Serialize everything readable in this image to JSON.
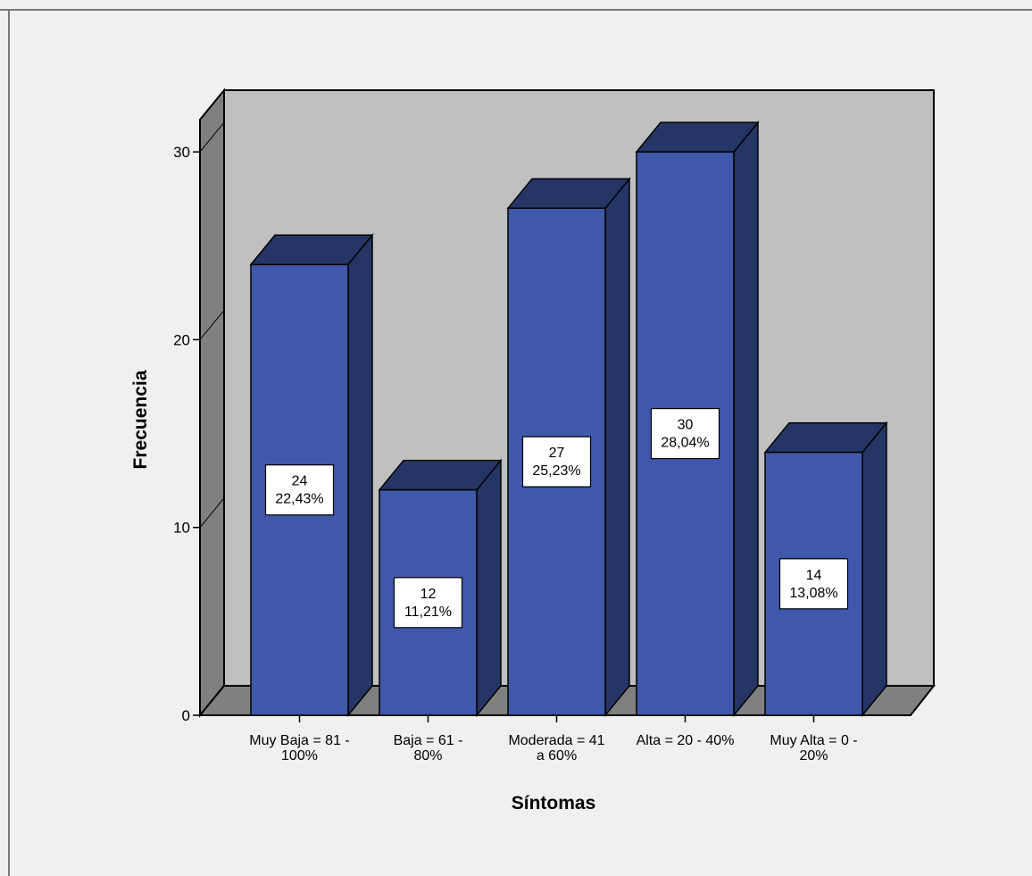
{
  "chart_data": {
    "type": "bar",
    "style": "3d",
    "title": "",
    "xlabel": "Síntomas",
    "ylabel": "Frecuencia",
    "ylim": [
      0,
      32
    ],
    "yticks": [
      0,
      10,
      20,
      30
    ],
    "grid": false,
    "legend": "none",
    "categories": [
      [
        "Muy Baja = 81 -",
        "100%"
      ],
      [
        "Baja = 61 -",
        "80%"
      ],
      [
        "Moderada = 41",
        "a 60%"
      ],
      [
        "Alta = 20 - 40%"
      ],
      [
        "Muy Alta = 0 -",
        "20%"
      ]
    ],
    "values": [
      24,
      12,
      27,
      30,
      14
    ],
    "value_labels": [
      "22,43%",
      "11,21%",
      "25,23%",
      "28,04%",
      "13,08%"
    ],
    "colors": {
      "bar_front": "#3f58aa",
      "bar_side": "#253565",
      "bar_top": "#253565",
      "back_wall": "#c0c0c0",
      "side_wall": "#808080",
      "floor": "#808080",
      "background": "#f0f0f0"
    }
  }
}
